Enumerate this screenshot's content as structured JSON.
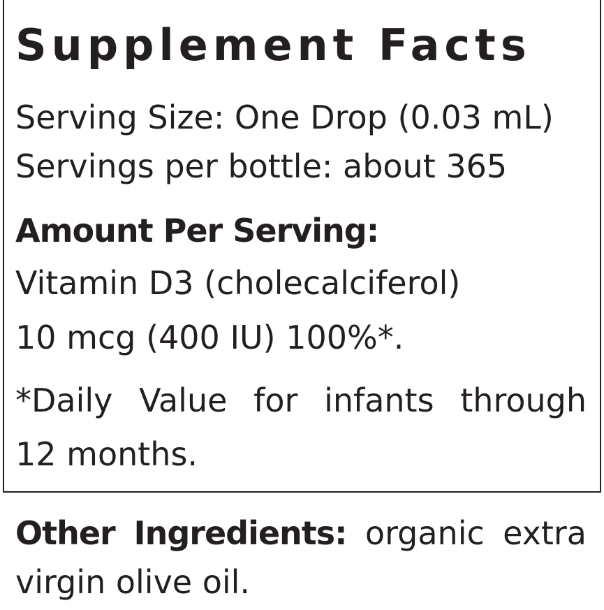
{
  "title": "Supplement Facts",
  "serving_size": "Serving Size: One Drop (0.03 mL)",
  "servings_per_container": "Servings per bottle: about 365",
  "amount_heading": "Amount Per Serving:",
  "nutrient": {
    "name": "Vitamin D3 (cholecalciferol)",
    "amount": "10 mcg (400 IU) 100%*."
  },
  "footnote": {
    "line1": "*Daily Value for infants through",
    "line2": "12 months."
  },
  "other_ingredients": {
    "label": "Other Ingredients:",
    "text_line1": "organic extra",
    "text_line2": "virgin olive oil."
  }
}
